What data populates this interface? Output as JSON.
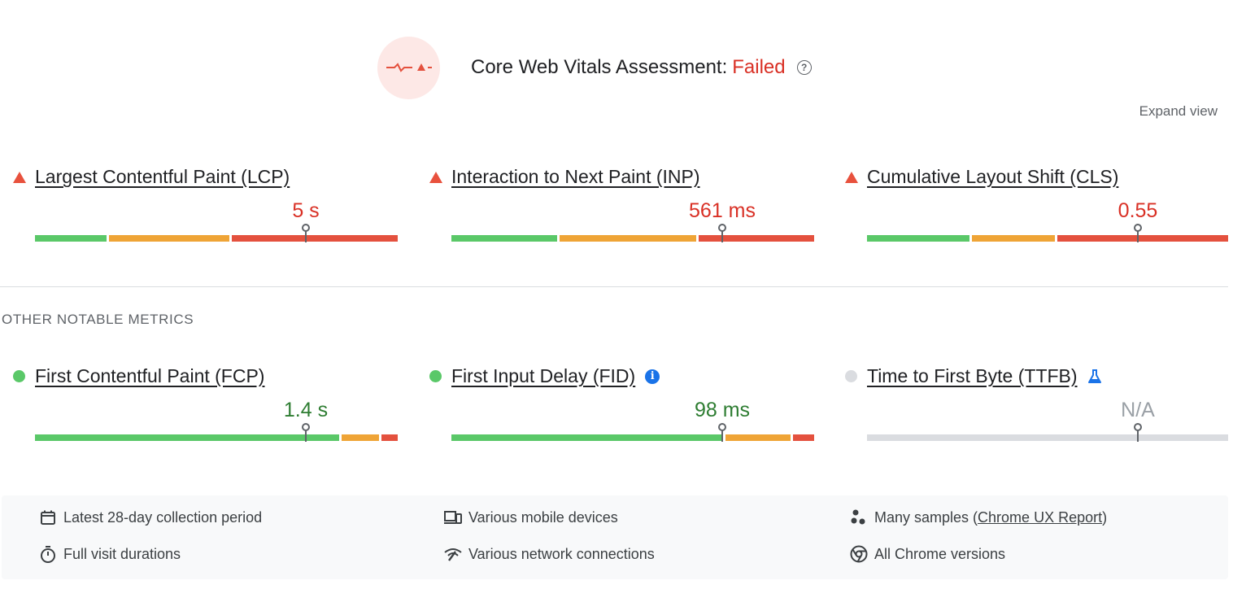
{
  "header": {
    "title": "Core Web Vitals Assessment:",
    "status": "Failed",
    "help_symbol": "?",
    "expand_label": "Expand view"
  },
  "core_metrics": [
    {
      "name": "Largest Contentful Paint (LCP)",
      "value": "5 s",
      "rating": "poor"
    },
    {
      "name": "Interaction to Next Paint (INP)",
      "value": "561 ms",
      "rating": "poor"
    },
    {
      "name": "Cumulative Layout Shift (CLS)",
      "value": "0.55",
      "rating": "poor"
    }
  ],
  "other_section_label": "OTHER NOTABLE METRICS",
  "other_metrics": [
    {
      "name": "First Contentful Paint (FCP)",
      "value": "1.4 s",
      "rating": "good"
    },
    {
      "name": "First Input Delay (FID)",
      "value": "98 ms",
      "rating": "good",
      "info_symbol": "i"
    },
    {
      "name": "Time to First Byte (TTFB)",
      "value": "N/A",
      "rating": "none"
    }
  ],
  "footer": {
    "collection_period": "Latest 28-day collection period",
    "devices": "Various mobile devices",
    "samples_prefix": "Many samples (",
    "samples_link": "Chrome UX Report",
    "samples_suffix": ")",
    "visit_durations": "Full visit durations",
    "network": "Various network connections",
    "chrome_versions": "All Chrome versions"
  },
  "colors": {
    "good": "#5ac868",
    "needs_improvement": "#efa436",
    "poor": "#e4513e",
    "failed_text": "#d93025",
    "good_text": "#2e7d32",
    "na_text": "#9aa0a6",
    "na_bar": "#dadce0",
    "info_blue": "#1a73e8"
  },
  "icons": {
    "badge": "failed-vitals-icon",
    "poor": "red-triangle-icon",
    "good": "green-dot-icon",
    "none": "gray-dot-icon",
    "info": "info-icon",
    "experimental": "flask-icon",
    "calendar": "calendar-icon",
    "devices": "devices-icon",
    "samples": "samples-icon",
    "timer": "timer-icon",
    "network": "network-icon",
    "chrome": "chrome-icon"
  }
}
